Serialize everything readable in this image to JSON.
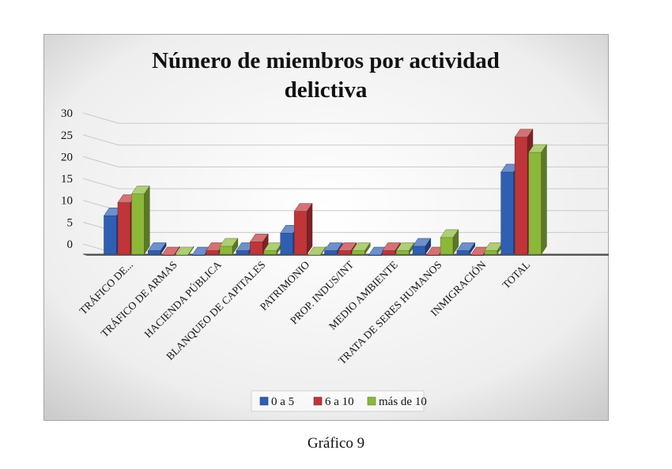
{
  "chart_data": {
    "type": "bar",
    "title": [
      "Número de miembros por actividad",
      "delictiva"
    ],
    "categories": [
      "TRÁFICO DE...",
      "TRÁFICO DE ARMAS",
      "HACIENDA PÚBLICA",
      "BLANQUEO DE CAPITALES",
      "PATRIMONIO",
      "PROP. INDUS/INT",
      "MEDIO AMBIENTE",
      "TRATA DE SERES HUMANOS",
      "INMIGRACIÓN",
      "TOTAL"
    ],
    "series": [
      {
        "name": "0 a 5",
        "color": "#2f5fb3",
        "values": [
          9,
          1,
          0,
          1,
          5,
          1,
          0,
          2,
          1,
          19
        ]
      },
      {
        "name": "6 a 10",
        "color": "#c0353a",
        "values": [
          12,
          0,
          1,
          3,
          10,
          1,
          1,
          0,
          0,
          27
        ]
      },
      {
        "name": "más de 10",
        "color": "#8cb83a",
        "values": [
          14,
          0,
          2,
          1,
          0,
          1,
          1,
          4,
          1,
          23.5
        ]
      }
    ],
    "yticks": [
      "0",
      "5",
      "10",
      "15",
      "20",
      "25",
      "30"
    ],
    "ylim": [
      0,
      30
    ],
    "grid": true,
    "legend": "bottom"
  },
  "caption": "Gráfico 9"
}
